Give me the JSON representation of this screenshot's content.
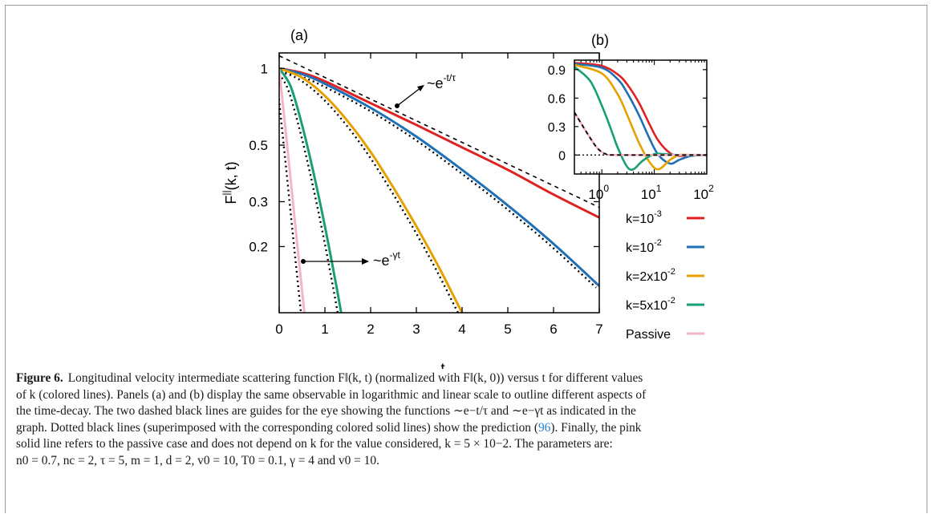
{
  "chart_data": [
    {
      "panel": "(a)",
      "type": "line",
      "xlabel": "t",
      "ylabel": "F||(k, t)",
      "xlim": [
        0,
        7
      ],
      "ylim": [
        0.11,
        1.15
      ],
      "yscale": "log",
      "xticks": [
        "0",
        "1",
        "2",
        "3",
        "4",
        "5",
        "6",
        "7"
      ],
      "yticks": [
        {
          "value": 1,
          "label": "1"
        },
        {
          "value": 0.5,
          "label": "0.5"
        },
        {
          "value": 0.3,
          "label": "0.3"
        },
        {
          "value": 0.2,
          "label": "0.2"
        }
      ],
      "series": [
        {
          "name": "k=10-3",
          "color": "#e02121",
          "x": [
            0,
            0.5,
            1,
            2,
            3,
            4,
            5,
            6,
            7
          ],
          "y": [
            1.0,
            0.96,
            0.89,
            0.73,
            0.6,
            0.49,
            0.4,
            0.32,
            0.26
          ]
        },
        {
          "name": "k=10-2",
          "color": "#1f6fb4",
          "x": [
            0,
            0.5,
            1,
            2,
            3,
            4,
            5,
            6,
            7
          ],
          "y": [
            1.0,
            0.95,
            0.87,
            0.7,
            0.54,
            0.4,
            0.29,
            0.205,
            0.14
          ]
        },
        {
          "name": "k=2x10-2",
          "color": "#e6a000",
          "x": [
            0,
            0.5,
            1,
            1.5,
            2,
            2.5,
            3,
            3.5,
            4,
            4.5
          ],
          "y": [
            1.0,
            0.92,
            0.78,
            0.62,
            0.47,
            0.34,
            0.24,
            0.165,
            0.11,
            0.074
          ]
        },
        {
          "name": "k=5x10-2",
          "color": "#17a078",
          "x": [
            0,
            0.25,
            0.5,
            0.75,
            1,
            1.25,
            1.55
          ],
          "y": [
            1.0,
            0.85,
            0.6,
            0.39,
            0.24,
            0.14,
            0.07
          ]
        },
        {
          "name": "Passive",
          "color": "#f4b6c2",
          "x": [
            0,
            0.1,
            0.2,
            0.3,
            0.4,
            0.55
          ],
          "y": [
            1.0,
            0.67,
            0.45,
            0.3,
            0.2,
            0.11
          ]
        }
      ],
      "guides": [
        {
          "label": "~e-t/τ",
          "x": [
            0,
            7
          ],
          "y": [
            1.12,
            0.285
          ]
        },
        {
          "label": "~e-γt",
          "x": [
            0,
            0.55
          ],
          "y": [
            1.0,
            0.11
          ]
        }
      ],
      "legend": "right"
    },
    {
      "panel": "(b)",
      "type": "line",
      "xscale": "log",
      "xlim": [
        0.3,
        100
      ],
      "ylim": [
        -0.2,
        1.0
      ],
      "xticks": [
        {
          "value": 1,
          "label": "10",
          "sup": "0"
        },
        {
          "value": 10,
          "label": "10",
          "sup": "1"
        },
        {
          "value": 100,
          "label": "10",
          "sup": "2"
        }
      ],
      "yticks": [
        "0.9",
        "0.6",
        "0.3",
        "0"
      ],
      "series": [
        {
          "name": "k=10-3",
          "x": [
            0.3,
            1,
            2,
            3,
            5,
            8,
            12,
            20,
            30,
            50,
            100
          ],
          "y": [
            0.97,
            0.94,
            0.85,
            0.75,
            0.56,
            0.33,
            0.15,
            0.02,
            -0.01,
            0,
            0
          ]
        },
        {
          "name": "k=10-2",
          "x": [
            0.3,
            1,
            2,
            3,
            5,
            8,
            12,
            20,
            30,
            50,
            100
          ],
          "y": [
            0.96,
            0.92,
            0.8,
            0.66,
            0.43,
            0.18,
            0.0,
            -0.09,
            -0.05,
            -0.01,
            0
          ]
        },
        {
          "name": "k=2x10-2",
          "x": [
            0.3,
            1,
            2,
            3,
            5,
            8,
            12,
            20,
            30,
            50,
            100
          ],
          "y": [
            0.95,
            0.86,
            0.64,
            0.43,
            0.14,
            -0.07,
            -0.15,
            -0.05,
            0.0,
            0,
            0
          ]
        },
        {
          "name": "k=5x10-2",
          "x": [
            0.3,
            0.6,
            1,
            1.5,
            2,
            3,
            4,
            6,
            10,
            15,
            30,
            100
          ],
          "y": [
            0.93,
            0.78,
            0.52,
            0.27,
            0.08,
            -0.12,
            -0.15,
            -0.06,
            0.01,
            0.01,
            0,
            0
          ]
        },
        {
          "name": "Passive",
          "x": [
            0.3,
            0.5,
            0.8,
            1.2,
            2,
            100
          ],
          "y": [
            0.45,
            0.25,
            0.08,
            0.01,
            0,
            0
          ]
        }
      ]
    }
  ],
  "panel_a_label": "(a)",
  "panel_b_label": "(b)",
  "legend": [
    {
      "text": "k=10",
      "sup": "-3"
    },
    {
      "text": "k=10",
      "sup": "-2"
    },
    {
      "text": "k=2x10",
      "sup": "-2"
    },
    {
      "text": "k=5x10",
      "sup": "-2"
    },
    {
      "text": "Passive",
      "sup": ""
    }
  ],
  "annotations": {
    "tau_base": "~e",
    "tau_sup": "-t/τ",
    "gamma_base": "~e",
    "gamma_sup": "-γt"
  },
  "y_axis_label": {
    "base": "F",
    "sup": "||",
    "rest": "(k, t)"
  },
  "x_axis_label": "t",
  "caption": {
    "label": "Figure 6.",
    "line1": "Longitudinal velocity intermediate scattering function F‖(k, t) (normalized with F‖(k, 0)) versus t for different values",
    "line2": "of k (colored lines). Panels (a) and (b) display the same observable in logarithmic and linear scale to outline different aspects of",
    "line3": "the time-decay. The two dashed black lines are guides for the eye showing the functions ∼e−t/τ and ∼e−γt as indicated in the",
    "line4a": "graph. Dotted black lines (superimposed with the corresponding colored solid lines) show the prediction (",
    "line4ref": "96",
    "line4b": "). Finally, the pink",
    "line5": "solid line refers to the passive case and does not depend on k for the value considered, k = 5 × 10−2. The parameters are:",
    "line6": "n0 = 0.7, nc = 2, τ = 5, m = 1, d = 2, v0 = 10, T0 = 0.1, γ = 4 and v0 = 10."
  }
}
